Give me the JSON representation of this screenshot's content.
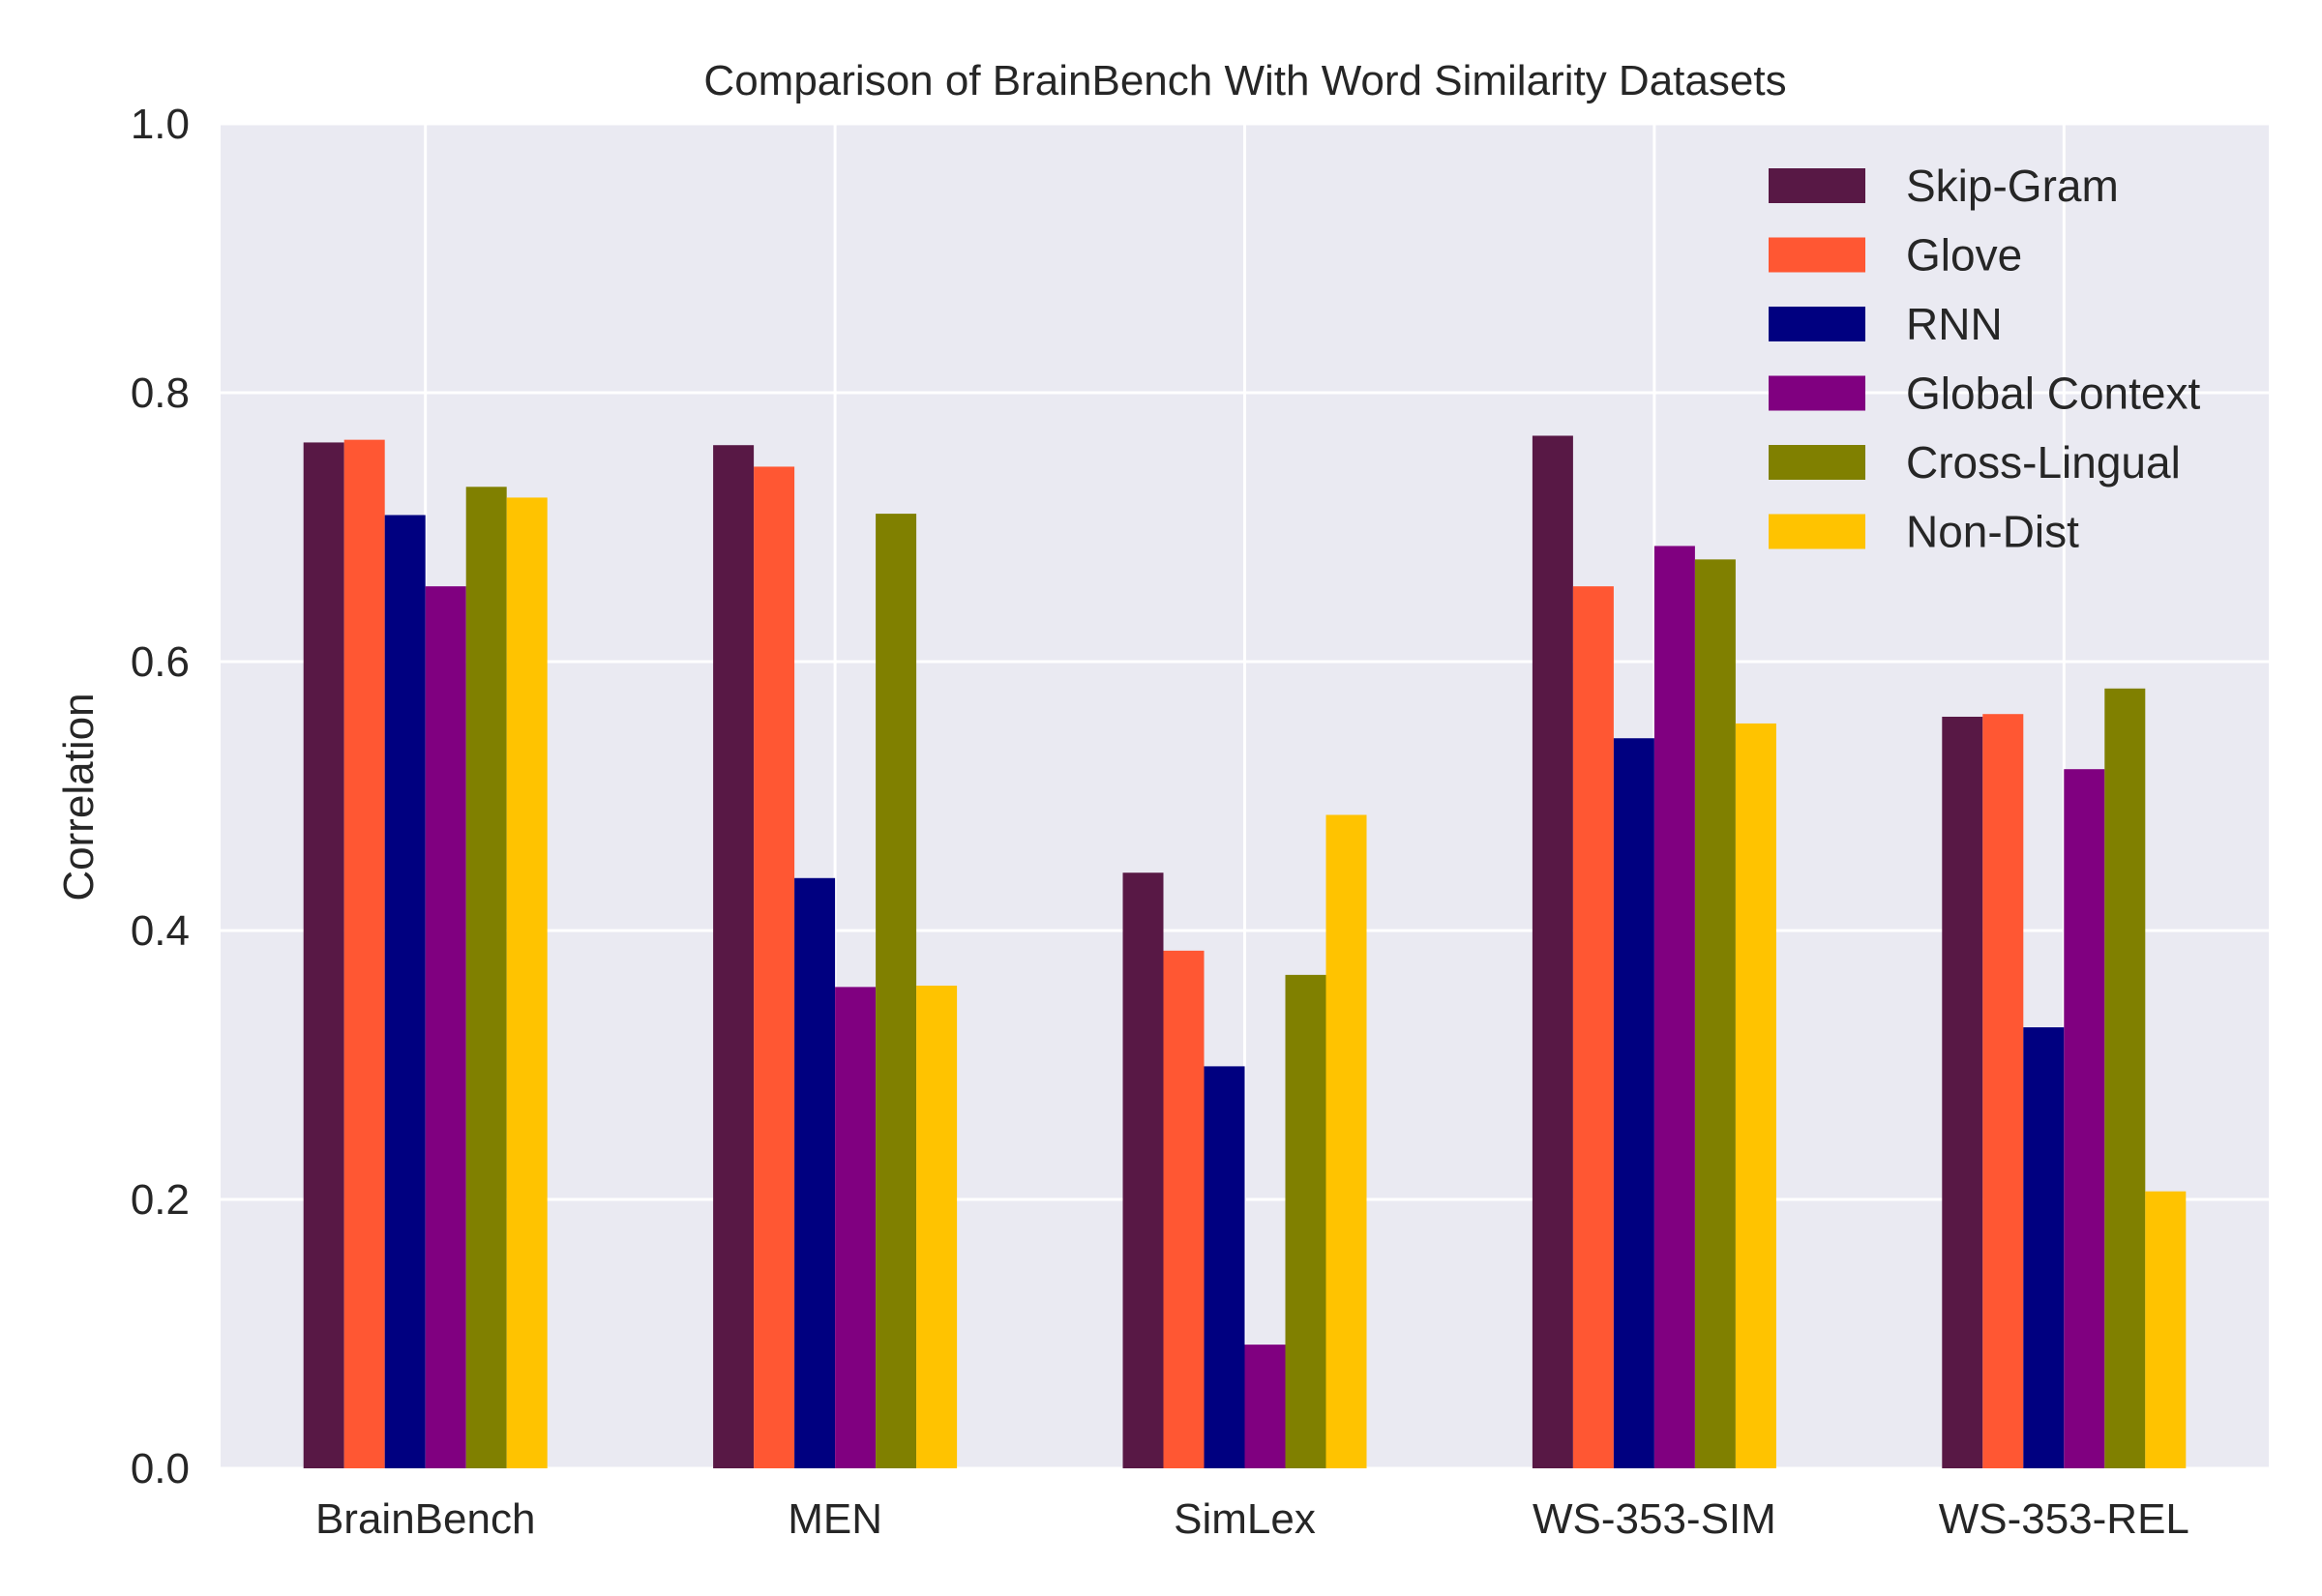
{
  "chart_data": {
    "type": "bar",
    "title": "Comparison of BrainBench With Word Similarity Datasets",
    "xlabel": "",
    "ylabel": "Correlation",
    "ylim": [
      0,
      1.0
    ],
    "yticks": [
      "0.0",
      "0.2",
      "0.4",
      "0.6",
      "0.8",
      "1.0"
    ],
    "grid": true,
    "legend_position": "top-right",
    "categories": [
      "BrainBench",
      "MEN",
      "SimLex",
      "WS-353-SIM",
      "WS-353-REL"
    ],
    "series": [
      {
        "name": "Skip-Gram",
        "color": "#581845",
        "values": [
          0.763,
          0.761,
          0.443,
          0.768,
          0.559
        ]
      },
      {
        "name": "Glove",
        "color": "#FF5733",
        "values": [
          0.765,
          0.745,
          0.385,
          0.656,
          0.561
        ]
      },
      {
        "name": "RNN",
        "color": "#000080",
        "values": [
          0.709,
          0.439,
          0.299,
          0.543,
          0.328
        ]
      },
      {
        "name": "Global Context",
        "color": "#800080",
        "values": [
          0.656,
          0.358,
          0.092,
          0.686,
          0.52
        ]
      },
      {
        "name": "Cross-Lingual",
        "color": "#808000",
        "values": [
          0.73,
          0.71,
          0.367,
          0.676,
          0.58
        ]
      },
      {
        "name": "Non-Dist",
        "color": "#FFC300",
        "values": [
          0.722,
          0.359,
          0.486,
          0.554,
          0.206
        ]
      }
    ],
    "style": {
      "plot_background": "#EAEAF2",
      "grid_color": "#FFFFFF"
    }
  }
}
